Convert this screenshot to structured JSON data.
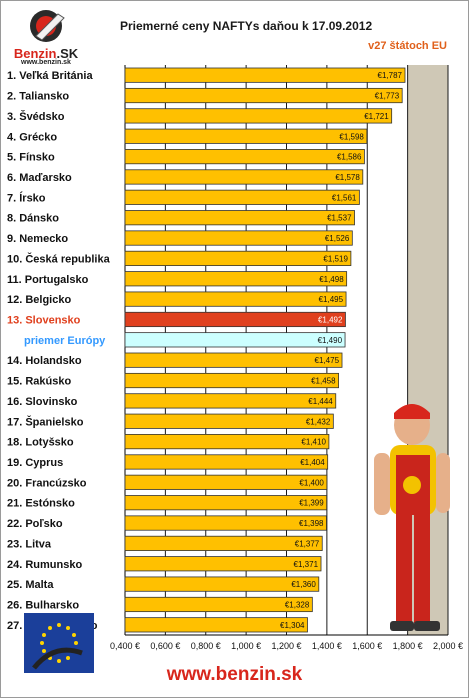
{
  "header": {
    "title": "Priemerné ceny NAFTYs daňou k 17.09.2012",
    "subtitle": "v27 štátoch EU",
    "logo_brand": "Benzin",
    "logo_brand_suffix": ".SK",
    "logo_url": "www.benzin.sk"
  },
  "footer": {
    "url": "www.benzin.sk"
  },
  "colors": {
    "bar": "#FFC000",
    "bar_highlight": "#E0401E",
    "bar_europe": "#CCFFFF",
    "label_highlight": "#E0401E",
    "label_europe": "#3399FF",
    "plot_bg": "#CFC8B6",
    "grid": "#1a1a1a"
  },
  "chart_data": {
    "type": "bar",
    "orientation": "horizontal",
    "categories": [
      "1. Veľká Británia",
      "2. Taliansko",
      "3. Švédsko",
      "4. Grécko",
      "5. Fínsko",
      "6. Maďarsko",
      "7. Írsko",
      "8. Dánsko",
      "9. Nemecko",
      "10. Česká republika",
      "11. Portugalsko",
      "12. Belgicko",
      "13. Slovensko",
      "priemer Európy",
      "14. Holandsko",
      "15. Rakúsko",
      "16. Slovinsko",
      "17. Španielsko",
      "18. Lotyšsko",
      "19. Cyprus",
      "20. Francúzsko",
      "21. Estónsko",
      "22. Poľsko",
      "23. Litva",
      "24. Rumunsko",
      "25. Malta",
      "26. Bulharsko",
      "27. Luxembursko"
    ],
    "values": [
      1.787,
      1.773,
      1.721,
      1.598,
      1.586,
      1.578,
      1.561,
      1.537,
      1.526,
      1.519,
      1.498,
      1.495,
      1.492,
      1.49,
      1.475,
      1.458,
      1.444,
      1.432,
      1.41,
      1.404,
      1.4,
      1.399,
      1.398,
      1.377,
      1.371,
      1.36,
      1.328,
      1.304
    ],
    "value_labels": [
      "€1,787",
      "€1,773",
      "€1,721",
      "€1,598",
      "€1,586",
      "€1,578",
      "€1,561",
      "€1,537",
      "€1,526",
      "€1,519",
      "€1,498",
      "€1,495",
      "€1,492",
      "€1,490",
      "€1,475",
      "€1,458",
      "€1,444",
      "€1,432",
      "€1,410",
      "€1,404",
      "€1,400",
      "€1,399",
      "€1,398",
      "€1,377",
      "€1,371",
      "€1,360",
      "€1,328",
      "€1,304"
    ],
    "highlight_index": 12,
    "average_index": 13,
    "xlim": [
      0.4,
      2.0
    ],
    "xticks": [
      0.4,
      0.6,
      0.8,
      1.0,
      1.2,
      1.4,
      1.6,
      1.8,
      2.0
    ],
    "xtick_labels": [
      "0,400 €",
      "0,600 €",
      "0,800 €",
      "1,000 €",
      "1,200 €",
      "1,400 €",
      "1,600 €",
      "1,800 €",
      "2,000 €"
    ],
    "grid": true
  }
}
